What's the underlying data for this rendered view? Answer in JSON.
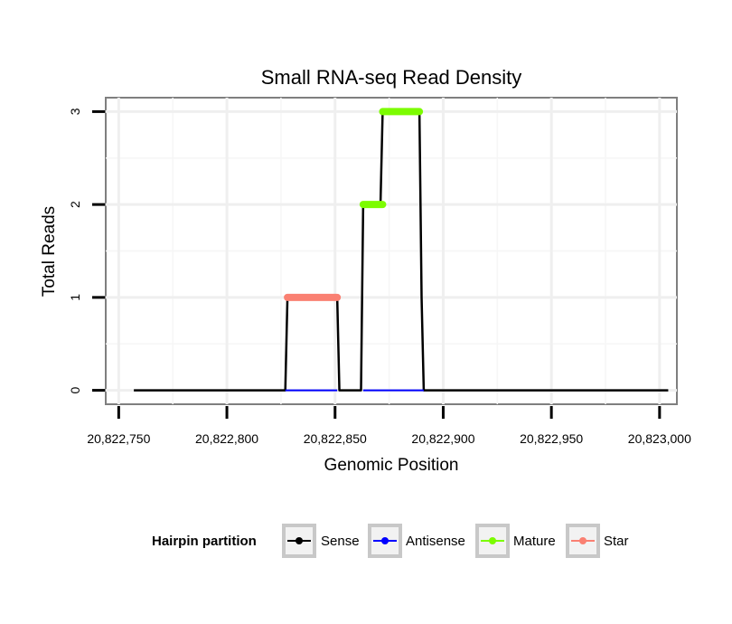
{
  "chart_data": {
    "type": "line",
    "title": "Small RNA-seq Read Density",
    "xlabel": "Genomic Position",
    "ylabel": "Total Reads",
    "xlim": [
      20822744,
      20823008
    ],
    "ylim": [
      -0.15,
      3.15
    ],
    "x_ticks": [
      20822750,
      20822800,
      20822850,
      20822900,
      20822950,
      20823000
    ],
    "x_tick_labels": [
      "20,822,750",
      "20,822,800",
      "20,822,850",
      "20,822,900",
      "20,822,950",
      "20,823,000"
    ],
    "y_ticks": [
      0,
      1,
      2,
      3
    ],
    "y_tick_labels": [
      "0",
      "1",
      "2",
      "3"
    ],
    "grid": true,
    "legend": {
      "title": "Hairpin partition",
      "position": "bottom",
      "entries": [
        {
          "name": "Sense",
          "color": "#000000"
        },
        {
          "name": "Antisense",
          "color": "#0000ff"
        },
        {
          "name": "Mature",
          "color": "#7cfc00"
        },
        {
          "name": "Star",
          "color": "#fa8072"
        }
      ]
    },
    "series": [
      {
        "name": "Sense",
        "color": "#000000",
        "x": [
          20822757,
          20822827,
          20822828,
          20822851,
          20822852,
          20822862,
          20822863,
          20822871,
          20822872,
          20822889,
          20822890,
          20822891,
          20823004
        ],
        "y": [
          0,
          0,
          1,
          1,
          0,
          0,
          2,
          2,
          3,
          3,
          1,
          0,
          0
        ]
      },
      {
        "name": "Antisense",
        "color": "#0000ff",
        "x": [
          20822827,
          20822851,
          20822863,
          20822891
        ],
        "y": [
          0,
          0,
          0,
          0
        ],
        "segments": [
          [
            20822827,
            20822851
          ],
          [
            20822863,
            20822891
          ]
        ]
      },
      {
        "name": "Mature",
        "color": "#7cfc00",
        "segments": [
          {
            "x0": 20822863,
            "x1": 20822872,
            "y": 2
          },
          {
            "x0": 20822872,
            "x1": 20822889,
            "y": 3
          }
        ]
      },
      {
        "name": "Star",
        "color": "#fa8072",
        "segments": [
          {
            "x0": 20822828,
            "x1": 20822851,
            "y": 1
          }
        ]
      }
    ]
  }
}
